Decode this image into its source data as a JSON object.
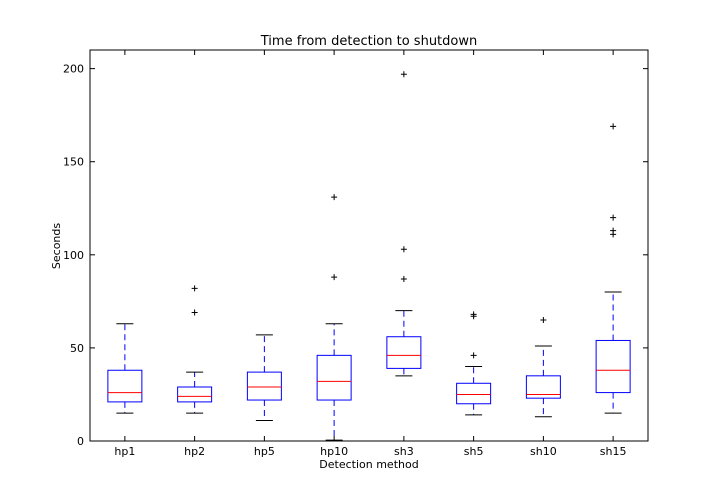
{
  "chart_data": {
    "type": "box",
    "title": "Time from detection to shutdown",
    "xlabel": "Detection method",
    "ylabel": "Seconds",
    "ylim": [
      0,
      210
    ],
    "yticks": [
      0,
      50,
      100,
      150,
      200
    ],
    "grid": false,
    "colors": {
      "box": "#0000ff",
      "median": "#ff0000",
      "whisker": "#0000ff",
      "cap": "#000000",
      "flier": "#000000"
    },
    "categories": [
      "hp1",
      "hp2",
      "hp5",
      "hp10",
      "sh3",
      "sh5",
      "sh10",
      "sh15"
    ],
    "boxes": [
      {
        "label": "hp1",
        "whislo": 15,
        "q1": 21,
        "med": 26,
        "q3": 38,
        "whishi": 63,
        "fliers": []
      },
      {
        "label": "hp2",
        "whislo": 15,
        "q1": 21,
        "med": 24,
        "q3": 29,
        "whishi": 37,
        "fliers": [
          69,
          82
        ]
      },
      {
        "label": "hp5",
        "whislo": 11,
        "q1": 22,
        "med": 29,
        "q3": 37,
        "whishi": 57,
        "fliers": []
      },
      {
        "label": "hp10",
        "whislo": 0.5,
        "q1": 22,
        "med": 32,
        "q3": 46,
        "whishi": 63,
        "fliers": [
          88,
          131
        ]
      },
      {
        "label": "sh3",
        "whislo": 35,
        "q1": 39,
        "med": 46,
        "q3": 56,
        "whishi": 70,
        "fliers": [
          87,
          103,
          197
        ]
      },
      {
        "label": "sh5",
        "whislo": 14,
        "q1": 20,
        "med": 25,
        "q3": 31,
        "whishi": 40,
        "fliers": [
          46,
          67,
          68
        ]
      },
      {
        "label": "sh10",
        "whislo": 13,
        "q1": 23,
        "med": 25,
        "q3": 35,
        "whishi": 51,
        "fliers": [
          65
        ]
      },
      {
        "label": "sh15",
        "whislo": 15,
        "q1": 26,
        "med": 38,
        "q3": 54,
        "whishi": 80,
        "fliers": [
          111,
          113,
          120,
          169
        ]
      }
    ]
  }
}
